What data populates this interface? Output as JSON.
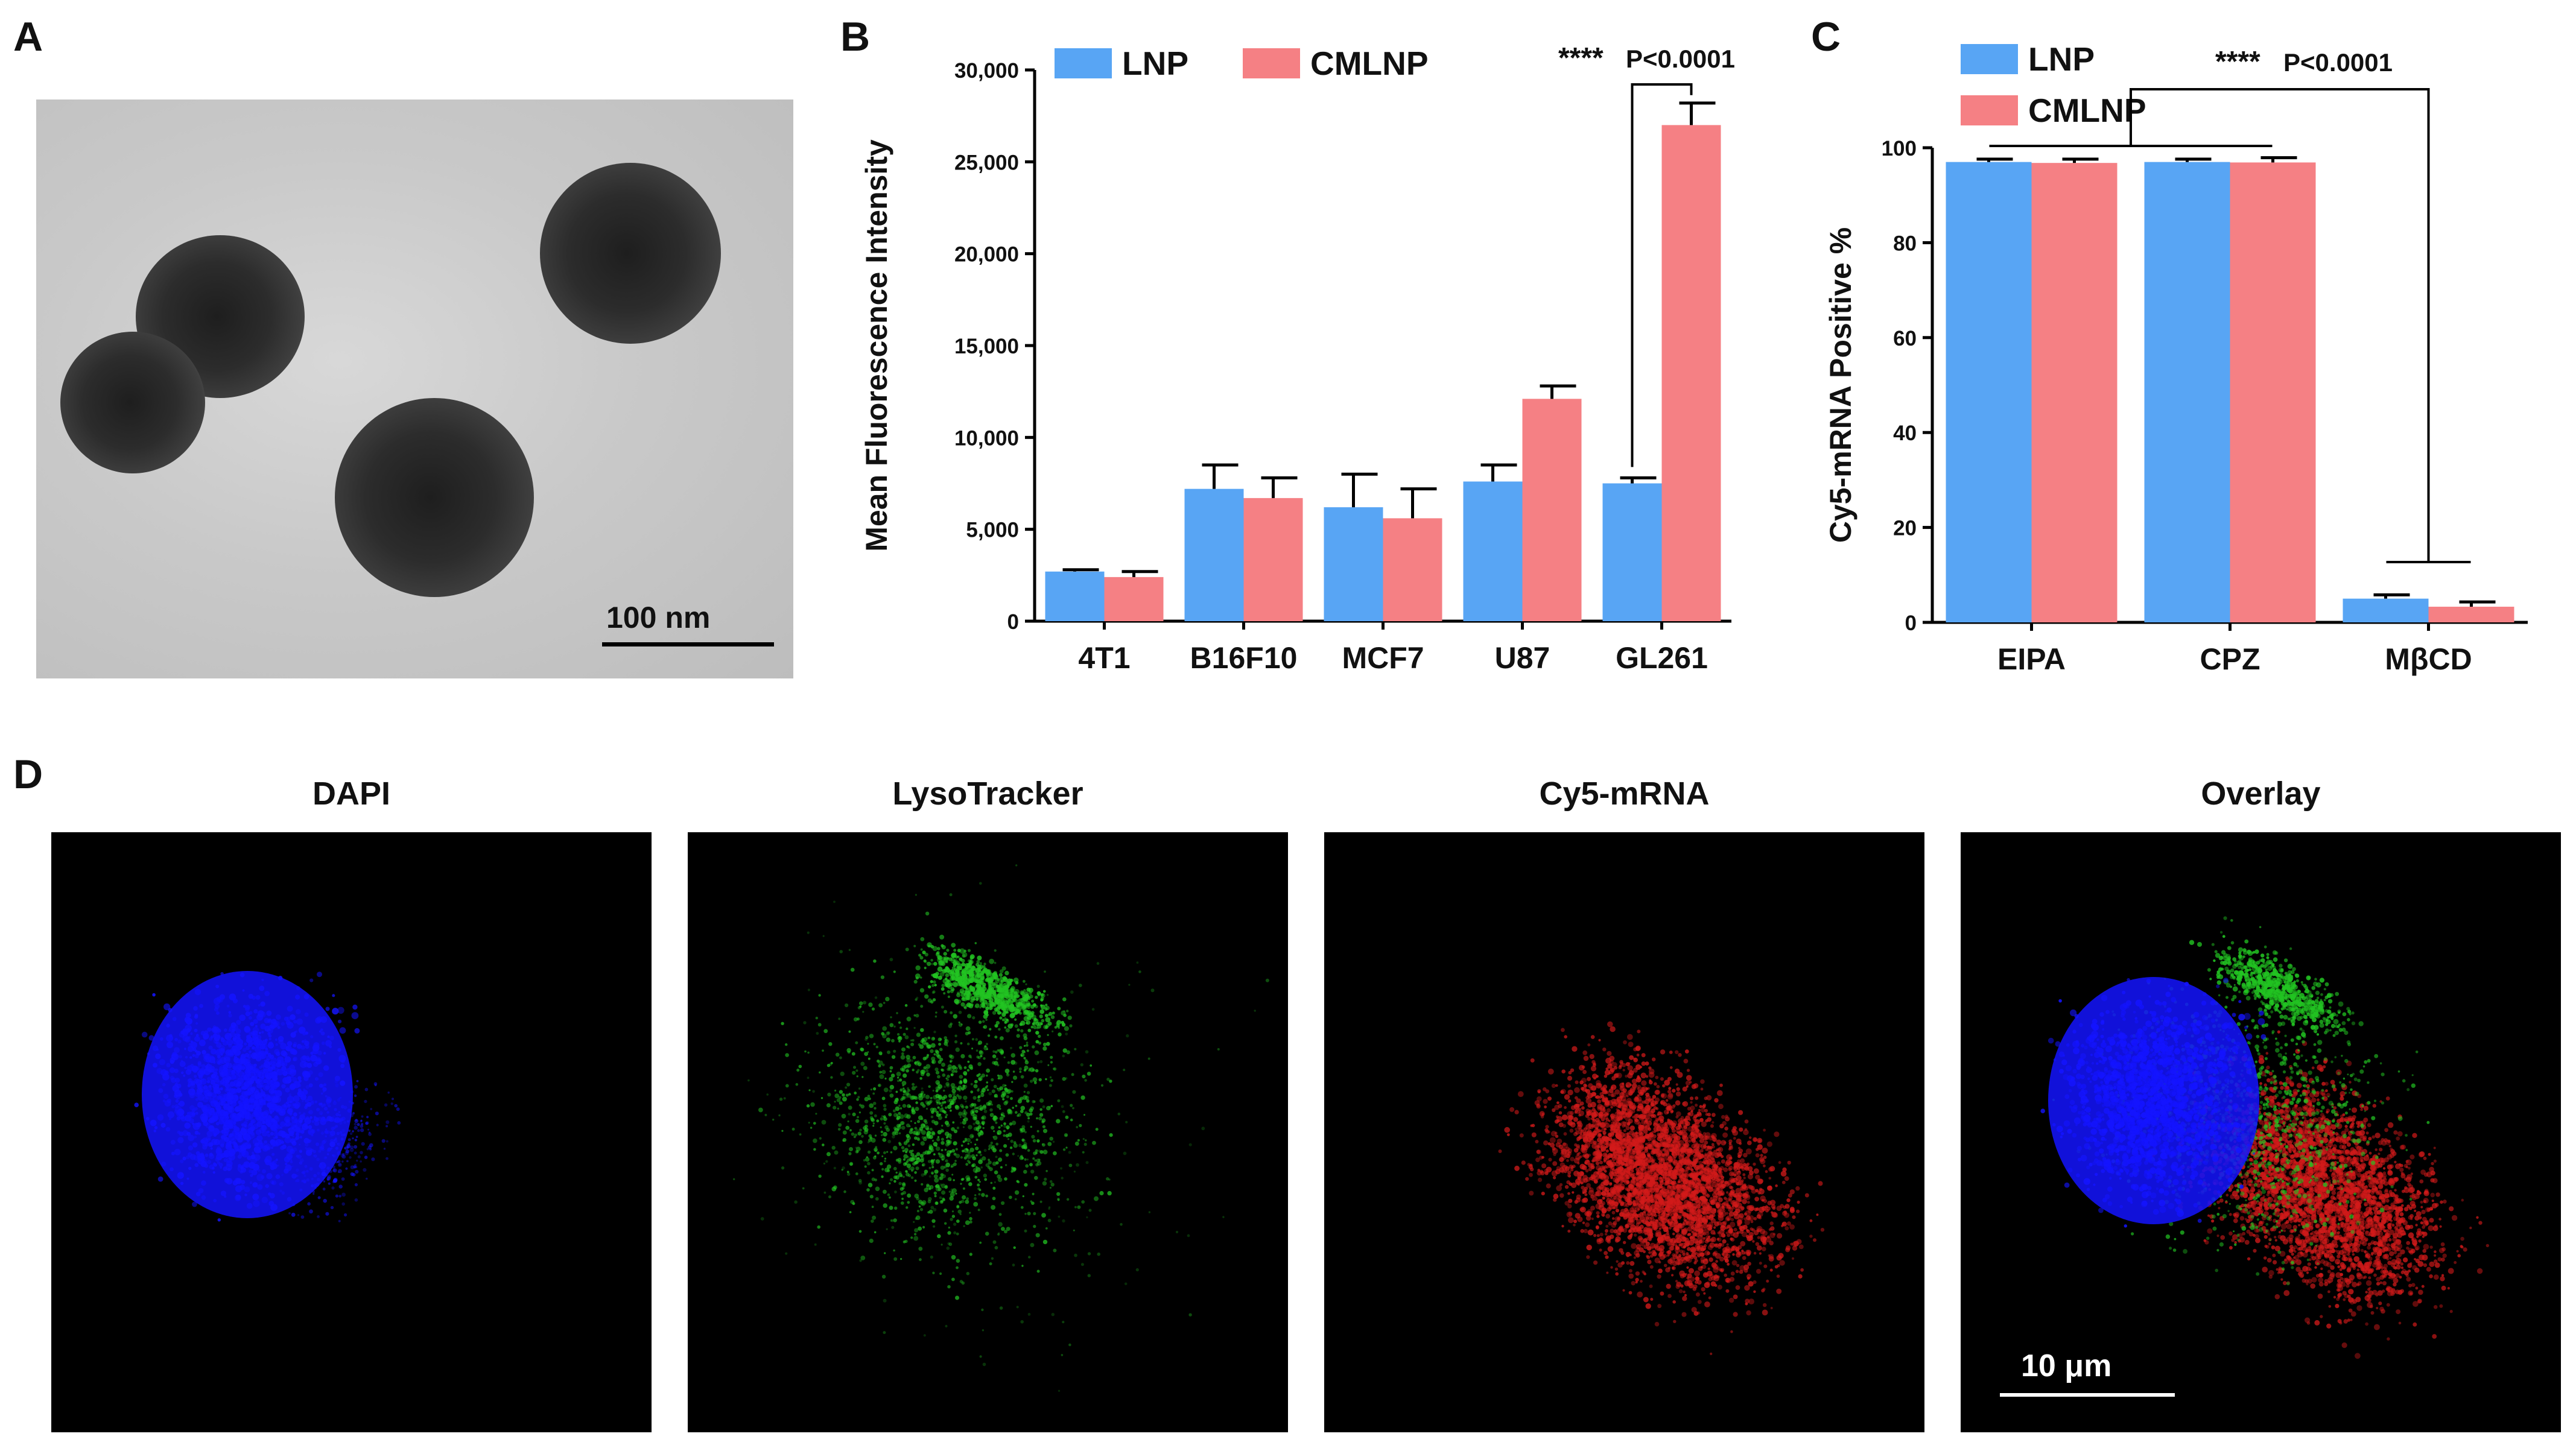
{
  "panel_labels": {
    "a": "A",
    "b": "B",
    "c": "C",
    "d": "D"
  },
  "panel_a": {
    "scale_bar": "100 nm"
  },
  "chart_data": [
    {
      "panel": "B",
      "type": "bar",
      "categories": [
        "4T1",
        "B16F10",
        "MCF7",
        "U87",
        "GL261"
      ],
      "series": [
        {
          "name": "LNP",
          "color": "#58a5f4",
          "values": [
            2700,
            7200,
            6200,
            7600,
            7500
          ],
          "errors": [
            100,
            1300,
            1800,
            900,
            300
          ]
        },
        {
          "name": "CMLNP",
          "color": "#f58084",
          "values": [
            2400,
            6700,
            5600,
            12100,
            27000
          ],
          "errors": [
            300,
            1100,
            1600,
            700,
            1200
          ]
        }
      ],
      "ylabel": "Mean Fluorescence Intensity",
      "ylim": [
        0,
        30000
      ],
      "yticks": [
        0,
        5000,
        10000,
        15000,
        20000,
        25000,
        30000
      ],
      "ytick_labels": [
        "0",
        "5,000",
        "10,000",
        "15,000",
        "20,000",
        "25,000",
        "30,000"
      ],
      "significance": {
        "stars": "****",
        "pvalue": "P<0.0001"
      },
      "legend": "top"
    },
    {
      "panel": "C",
      "type": "bar",
      "categories": [
        "EIPA",
        "CPZ",
        "MβCD"
      ],
      "series": [
        {
          "name": "LNP",
          "color": "#58a5f4",
          "values": [
            97,
            97,
            5
          ],
          "errors": [
            0.6,
            0.6,
            0.8
          ]
        },
        {
          "name": "CMLNP",
          "color": "#f58084",
          "values": [
            96.8,
            96.9,
            3.3
          ],
          "errors": [
            0.8,
            1.0,
            1.0
          ]
        }
      ],
      "ylabel": "Cy5-mRNA Positive %",
      "ylim": [
        0,
        100
      ],
      "yticks": [
        0,
        20,
        40,
        60,
        80,
        100
      ],
      "ytick_labels": [
        "0",
        "20",
        "40",
        "60",
        "80",
        "100"
      ],
      "significance": {
        "stars": "****",
        "pvalue": "P<0.0001"
      },
      "legend": "top-left"
    }
  ],
  "panel_d": {
    "titles": [
      "DAPI",
      "LysoTracker",
      "Cy5-mRNA",
      "Overlay"
    ],
    "scale_bar": "10 μm",
    "colors": {
      "dapi": "#1414ff",
      "lyso": "#22c422",
      "cy5": "#d21a1a"
    }
  }
}
